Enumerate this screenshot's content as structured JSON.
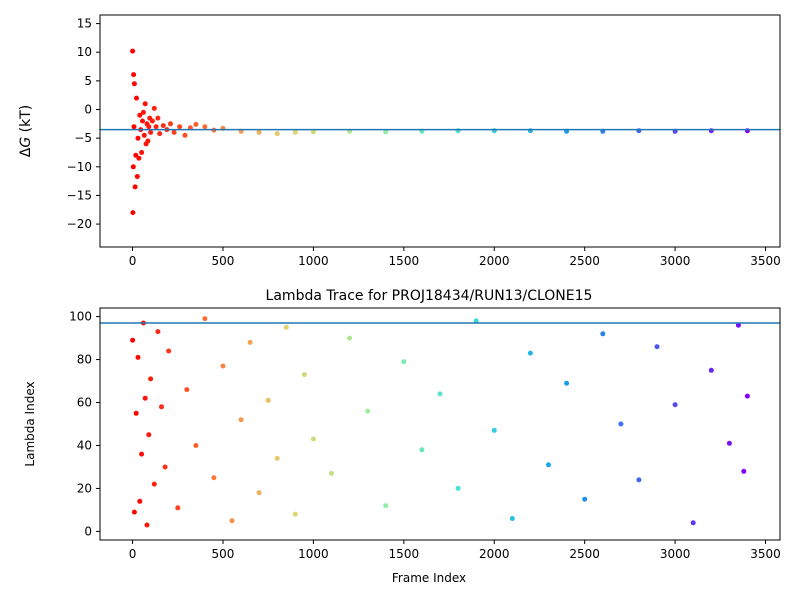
{
  "chart_data": [
    {
      "type": "scatter",
      "title": "",
      "xlabel": "",
      "ylabel": "ΔG (kT)",
      "ylabel_parts": {
        "delta": "Δ",
        "var": "G",
        "unit": " (kT)"
      },
      "xlim": [
        -180,
        3580
      ],
      "ylim": [
        -24,
        16.5
      ],
      "xticks": [
        0,
        500,
        1000,
        1500,
        2000,
        2500,
        3000,
        3500
      ],
      "yticks": [
        -20,
        -15,
        -10,
        -5,
        0,
        5,
        10,
        15
      ],
      "grid": false,
      "colormap": "rainbow (red at frame 0 to violet at frame 3400)",
      "reference_line": {
        "y": -3.5,
        "color": "#1f77b4"
      },
      "series": [
        {
          "x": [
            0,
            2,
            4,
            6,
            8,
            10,
            14,
            18,
            22,
            26,
            30,
            35,
            40,
            45,
            50,
            55,
            60,
            65,
            70,
            75,
            80,
            85,
            90,
            95,
            100,
            110,
            120,
            130,
            140,
            150,
            170,
            190,
            210,
            230,
            260,
            290,
            320,
            350,
            400,
            450,
            500,
            600,
            700,
            800,
            900,
            1000,
            1200,
            1400,
            1600,
            1800,
            2000,
            2200,
            2400,
            2600,
            2800,
            3000,
            3200,
            3400
          ],
          "y": [
            10.2,
            -18,
            -10,
            6.1,
            -3,
            4.5,
            -13.5,
            -8,
            2,
            -11.7,
            -5,
            -8.5,
            -1,
            -3.5,
            -7.5,
            -2,
            -0.5,
            -4.5,
            1,
            -6,
            -2.5,
            -5.5,
            -3,
            -1.5,
            -4,
            -2,
            0.2,
            -3,
            -1.5,
            -4.2,
            -2.8,
            -3.5,
            -2.5,
            -4,
            -3,
            -4.5,
            -3.2,
            -2.6,
            -3,
            -3.6,
            -3.3,
            -3.8,
            -4,
            -4.2,
            -4,
            -3.9,
            -3.8,
            -3.9,
            -3.8,
            -3.7,
            -3.7,
            -3.7,
            -3.8,
            -3.8,
            -3.7,
            -3.8,
            -3.7,
            -3.7
          ]
        }
      ]
    },
    {
      "type": "scatter",
      "title": "Lambda Trace for PROJ18434/RUN13/CLONE15",
      "xlabel": "Frame Index",
      "ylabel": "Lambda Index",
      "xlim": [
        -180,
        3580
      ],
      "ylim": [
        -4,
        104
      ],
      "xticks": [
        0,
        500,
        1000,
        1500,
        2000,
        2500,
        3000,
        3500
      ],
      "yticks": [
        0,
        20,
        40,
        60,
        80,
        100
      ],
      "grid": false,
      "colormap": "rainbow (red at frame 0 to violet at frame 3400)",
      "reference_line": {
        "y": 97,
        "color": "#1f77b4"
      },
      "series": [
        {
          "x": [
            0,
            10,
            20,
            30,
            40,
            50,
            60,
            70,
            80,
            90,
            100,
            120,
            140,
            160,
            180,
            200,
            250,
            300,
            350,
            400,
            450,
            500,
            550,
            600,
            650,
            700,
            750,
            800,
            850,
            900,
            950,
            1000,
            1100,
            1200,
            1300,
            1400,
            1500,
            1600,
            1700,
            1800,
            1900,
            2000,
            2100,
            2200,
            2300,
            2400,
            2500,
            2600,
            2700,
            2800,
            2900,
            3000,
            3100,
            3200,
            3300,
            3350,
            3380,
            3400
          ],
          "y": [
            89,
            9,
            55,
            81,
            14,
            36,
            97,
            62,
            3,
            45,
            71,
            22,
            93,
            58,
            30,
            84,
            11,
            66,
            40,
            99,
            25,
            77,
            5,
            52,
            88,
            18,
            61,
            34,
            95,
            8,
            73,
            43,
            27,
            90,
            56,
            12,
            79,
            38,
            64,
            20,
            98,
            47,
            6,
            83,
            31,
            69,
            15,
            92,
            50,
            24,
            86,
            59,
            4,
            75,
            41,
            96,
            28,
            63
          ]
        }
      ]
    }
  ]
}
